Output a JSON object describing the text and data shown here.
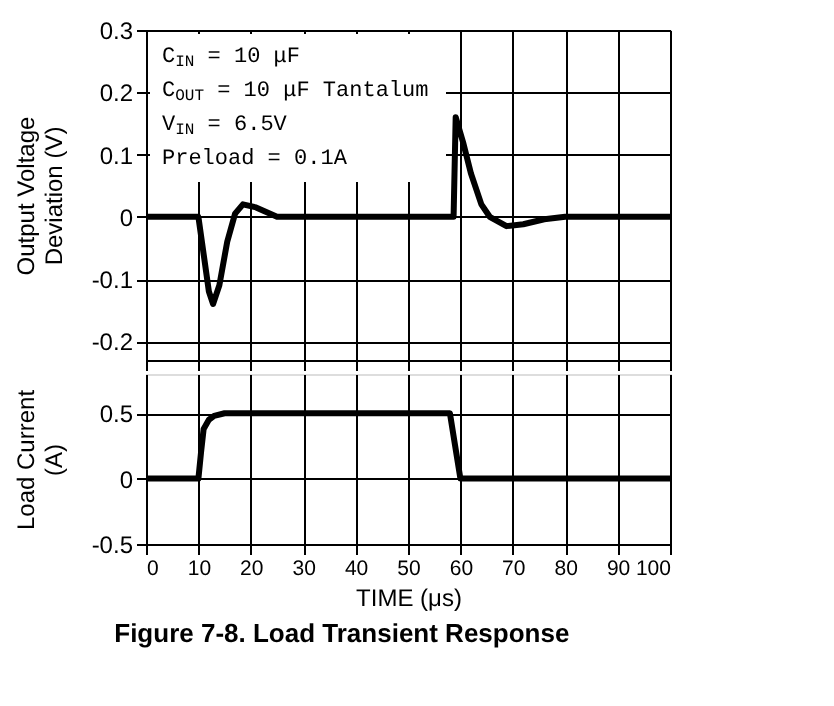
{
  "chart_data": [
    {
      "type": "line",
      "ylabel": "Output Voltage Deviation (V)",
      "xlim": [
        0,
        100
      ],
      "xticks": [
        0,
        10,
        20,
        30,
        40,
        50,
        60,
        70,
        80,
        90,
        100
      ],
      "ylim": [
        -0.23,
        0.3
      ],
      "yticks": [
        -0.2,
        -0.1,
        0,
        0.1,
        0.2,
        0.3
      ],
      "grid": true,
      "tick_labels": "y",
      "line_style": "solid",
      "annotations": [
        "C$_{IN}$ = 10 μF",
        "C$_{OUT}$ = 10 μF Tantalum",
        "V$_{IN}$ = 6.5V",
        "Preload = 0.1A"
      ],
      "series": [
        {
          "color": "#000000",
          "x": [
            0,
            10,
            11,
            12,
            12.8,
            14,
            15.5,
            17,
            18.5,
            21,
            25,
            30,
            58.7,
            59.1,
            60.5,
            62,
            64,
            65.6,
            68.8,
            72,
            76,
            80,
            90,
            100
          ],
          "values": [
            0,
            0,
            -0.06,
            -0.12,
            -0.14,
            -0.11,
            -0.04,
            0.005,
            0.02,
            0.015,
            0,
            0,
            0,
            0.16,
            0.12,
            0.07,
            0.02,
            0,
            -0.015,
            -0.012,
            -0.004,
            0,
            0,
            0
          ]
        }
      ]
    },
    {
      "type": "line",
      "title": "Figure 7-8. Load Transient Response",
      "xlabel": "TIME (μs)",
      "ylabel": "Load Current (A)",
      "xlim": [
        0,
        100
      ],
      "xticks": [
        0,
        10,
        20,
        30,
        40,
        50,
        60,
        70,
        80,
        90,
        100
      ],
      "ylim": [
        -0.5,
        0.8
      ],
      "yticks": [
        -0.5,
        0,
        0.5
      ],
      "grid": true,
      "line_style": "solid",
      "series": [
        {
          "color": "#000000",
          "x": [
            0,
            10,
            10.5,
            11,
            12,
            13,
            15,
            20,
            58,
            59,
            60,
            100
          ],
          "values": [
            0,
            0,
            0.2,
            0.38,
            0.45,
            0.48,
            0.5,
            0.5,
            0.5,
            0.25,
            0,
            0
          ]
        }
      ]
    }
  ]
}
